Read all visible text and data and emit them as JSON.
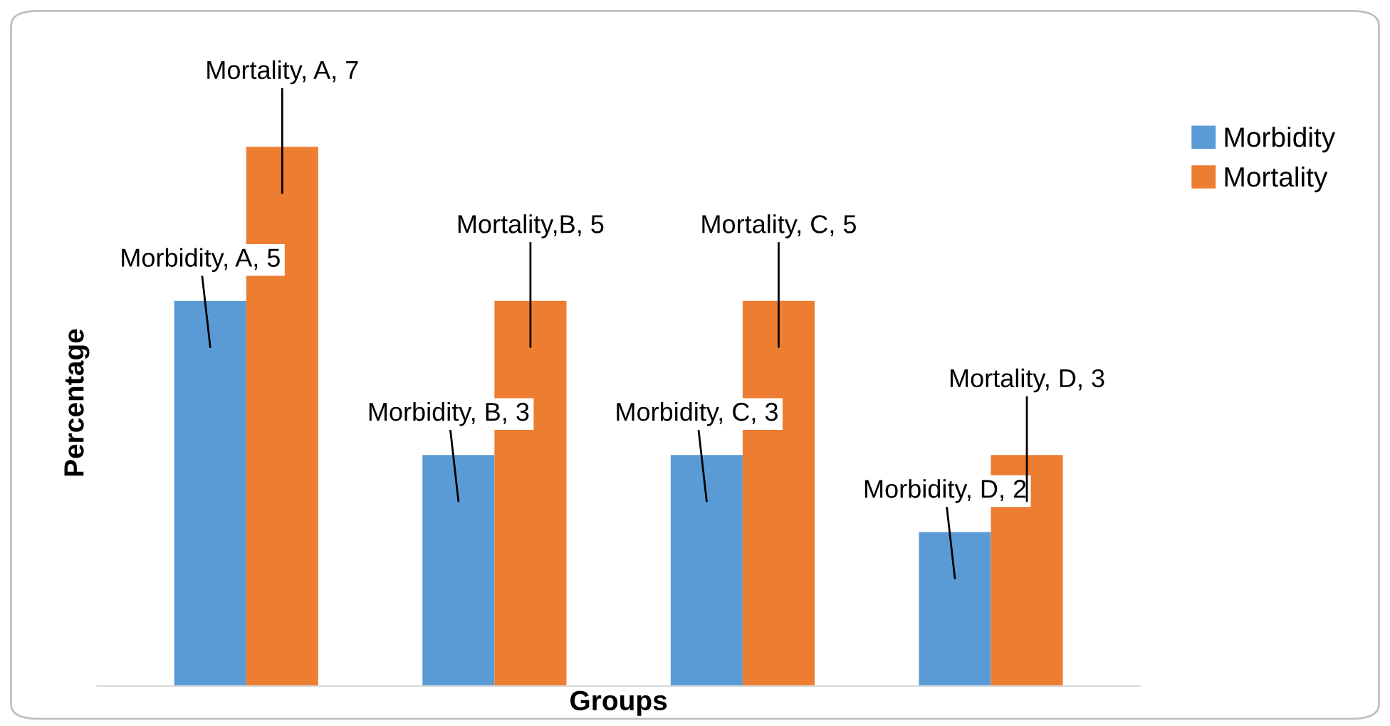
{
  "chart_data": {
    "type": "bar",
    "xlabel": "Groups",
    "ylabel": "Percentage",
    "categories": [
      null,
      null,
      null,
      null
    ],
    "series": [
      {
        "name": "Morbidity",
        "color": "#5b9bd5",
        "values": [
          5,
          3,
          3,
          2
        ],
        "value_labels": [
          "Morbidity, A, 5",
          "Morbidity, B, 3",
          "Morbidity, C, 3",
          "Morbidity, D, 2"
        ]
      },
      {
        "name": "Mortality",
        "color": "#ed7d31",
        "values": [
          7,
          5,
          5,
          3
        ],
        "value_labels": [
          "Mortality, A, 7",
          "Mortality,B, 5",
          "Mortality, C, 5",
          "Mortality, D, 3"
        ]
      }
    ],
    "tick_labels": false,
    "grid": false,
    "legend": "top right"
  }
}
